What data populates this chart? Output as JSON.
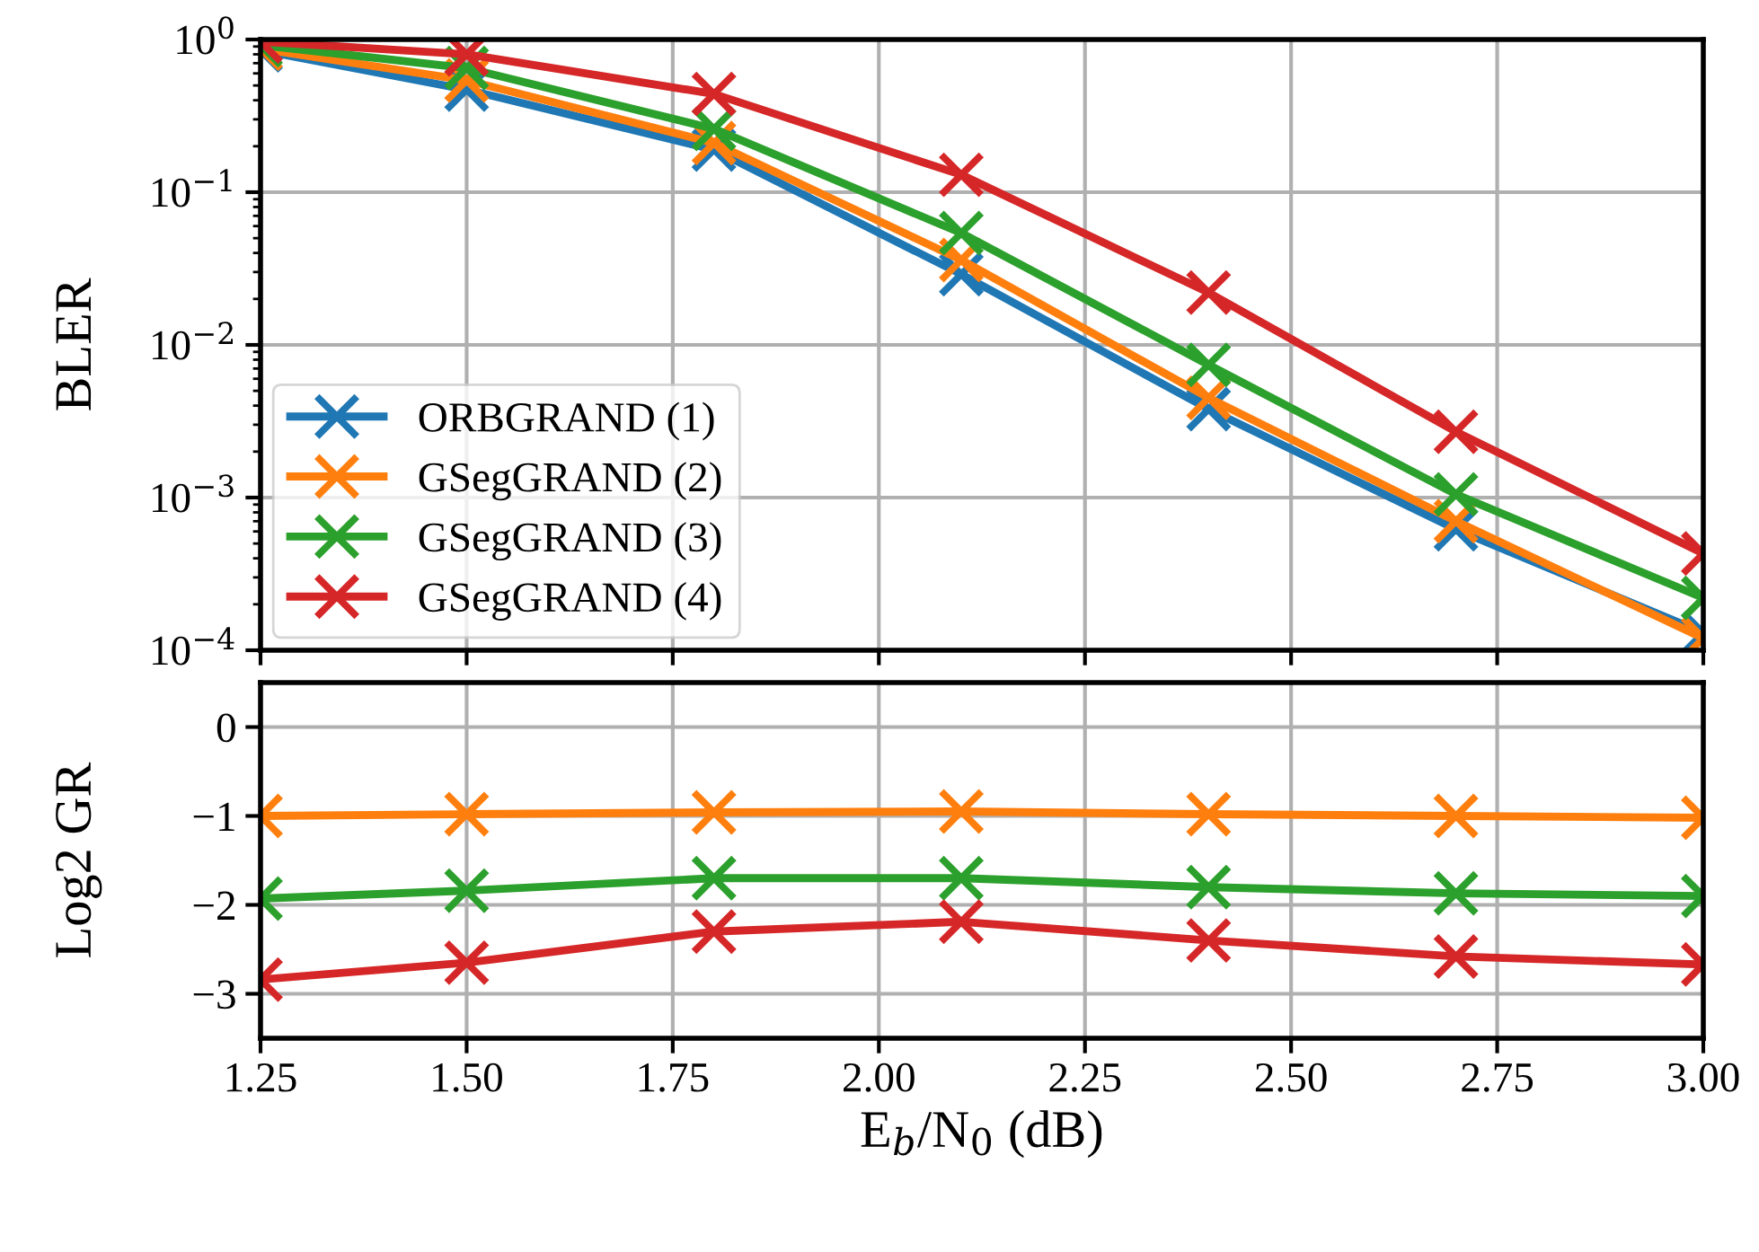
{
  "chart_data": [
    {
      "type": "line",
      "ylabel": "BLER",
      "log": "y",
      "grid": true,
      "legend": "bottom left",
      "marker": "cross",
      "line_style": "solid",
      "tick_labels": "y",
      "x": [
        1.25,
        1.5,
        1.8,
        2.1,
        2.4,
        2.7,
        3.0
      ],
      "xlim": [
        1.25,
        3.0
      ],
      "xticks": [
        1.25,
        1.5,
        1.75,
        2.0,
        2.25,
        2.5,
        2.75,
        3.0
      ],
      "ylim": [
        0.0001,
        1
      ],
      "yticks": [
        {
          "value": 0.0001,
          "label": "10$^{−4}$"
        },
        {
          "value": 0.001,
          "label": "10$^{−3}$"
        },
        {
          "value": 0.01,
          "label": "10$^{−2}$"
        },
        {
          "value": 0.1,
          "label": "10$^{−1}$"
        },
        {
          "value": 1,
          "label": "10$^{0}$"
        }
      ],
      "series": [
        {
          "name": "ORBGRAND (1)",
          "color": "#1f77b4",
          "values": [
            0.85,
            0.47,
            0.19,
            0.029,
            0.0038,
            0.00062,
            0.00013
          ]
        },
        {
          "name": "GSegGRAND (2)",
          "color": "#ff7f0e",
          "values": [
            0.87,
            0.54,
            0.21,
            0.036,
            0.0045,
            0.0007,
            0.00012
          ]
        },
        {
          "name": "GSegGRAND (3)",
          "color": "#2ca02c",
          "values": [
            0.92,
            0.65,
            0.26,
            0.054,
            0.0074,
            0.00105,
            0.00022
          ]
        },
        {
          "name": "GSegGRAND (4)",
          "color": "#d62728",
          "values": [
            0.97,
            0.8,
            0.44,
            0.13,
            0.022,
            0.0027,
            0.00043
          ]
        }
      ]
    },
    {
      "type": "line",
      "ylabel": "Log2 GR",
      "xlabel": "E$_{b}$/N$_{0}$ (dB)",
      "grid": true,
      "marker": "cross",
      "line_style": "solid",
      "x": [
        1.25,
        1.5,
        1.8,
        2.1,
        2.4,
        2.7,
        3.0
      ],
      "xlim": [
        1.25,
        3.0
      ],
      "xticks": [
        {
          "value": 1.25,
          "label": "1.25"
        },
        {
          "value": 1.5,
          "label": "1.50"
        },
        {
          "value": 1.75,
          "label": "1.75"
        },
        {
          "value": 2.0,
          "label": "2.00"
        },
        {
          "value": 2.25,
          "label": "2.25"
        },
        {
          "value": 2.5,
          "label": "2.50"
        },
        {
          "value": 2.75,
          "label": "2.75"
        },
        {
          "value": 3.0,
          "label": "3.00"
        }
      ],
      "ylim": [
        -3.5,
        0.5
      ],
      "yticks": [
        {
          "value": 0,
          "label": "0"
        },
        {
          "value": -1,
          "label": "−1"
        },
        {
          "value": -2,
          "label": "−2"
        },
        {
          "value": -3,
          "label": "−3"
        }
      ],
      "series": [
        {
          "color": "#ff7f0e",
          "values": [
            -1.0,
            -0.98,
            -0.96,
            -0.95,
            -0.98,
            -1.0,
            -1.02
          ]
        },
        {
          "color": "#2ca02c",
          "values": [
            -1.93,
            -1.84,
            -1.7,
            -1.7,
            -1.8,
            -1.87,
            -1.9
          ]
        },
        {
          "color": "#d62728",
          "values": [
            -2.84,
            -2.65,
            -2.3,
            -2.19,
            -2.4,
            -2.58,
            -2.67
          ]
        }
      ]
    }
  ]
}
